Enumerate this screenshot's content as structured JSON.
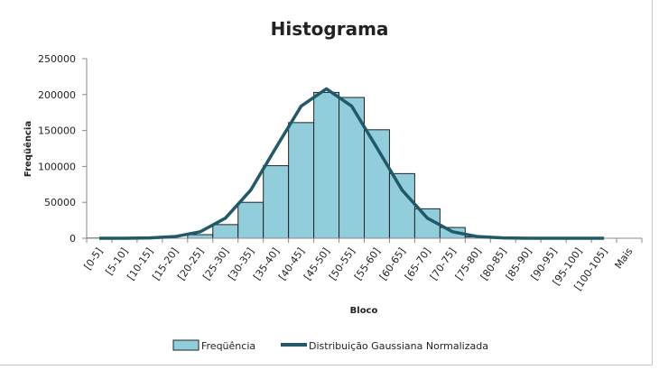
{
  "chart_data": {
    "type": "bar",
    "title": "Histograma",
    "xlabel": "Bloco",
    "ylabel": "Freqüência",
    "ylim": [
      0,
      250000
    ],
    "yticks": [
      "0",
      "50000",
      "100000",
      "150000",
      "200000",
      "250000"
    ],
    "grid": false,
    "legend": "bottom",
    "categories": [
      "[0-5]",
      "[5-10]",
      "[10-15]",
      "[15-20]",
      "[20-25]",
      "[25-30]",
      "[30-35]",
      "[35-40]",
      "[40-45]",
      "[45-50]",
      "[50-55]",
      "[55-60]",
      "[60-65]",
      "[65-70]",
      "[70-75]",
      "[75-80]",
      "[80-85]",
      "[85-90]",
      "[90-95]",
      "[95-100]",
      "[100-105]",
      "Mais"
    ],
    "series": [
      {
        "name": "Freqüência",
        "type": "bar",
        "color": "#92cddc",
        "values": [
          300,
          0,
          0,
          0,
          5000,
          19000,
          50000,
          101000,
          161000,
          203000,
          196000,
          151000,
          90000,
          41000,
          15000,
          2000,
          0,
          0,
          0,
          0,
          0,
          0
        ]
      },
      {
        "name": "Distribuição Gaussiana Normalizada",
        "type": "line",
        "color": "#215968",
        "values": [
          0,
          50,
          400,
          2300,
          9000,
          28000,
          67000,
          126000,
          184000,
          208000,
          184000,
          126000,
          67000,
          28000,
          9000,
          2300,
          450,
          70,
          10,
          0,
          0,
          null
        ]
      }
    ]
  }
}
